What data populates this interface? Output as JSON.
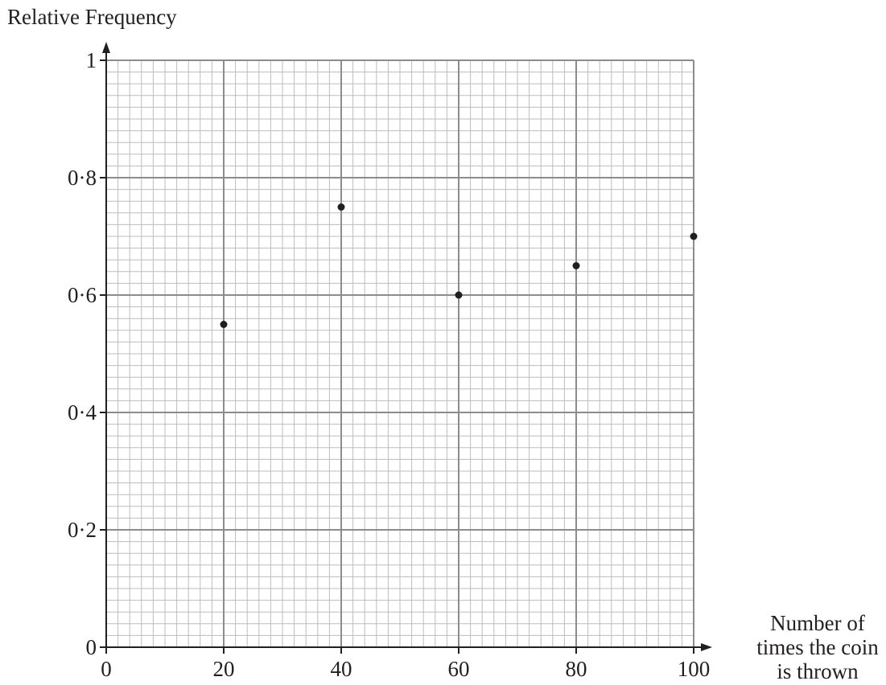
{
  "chart_data": {
    "type": "scatter",
    "ylabel": "Relative Frequency",
    "xlabel_lines": [
      "Number of",
      "times the coin",
      "is thrown"
    ],
    "xlim": [
      0,
      100
    ],
    "ylim": [
      0,
      1
    ],
    "x_ticks": [
      "0",
      "20",
      "40",
      "60",
      "80",
      "100"
    ],
    "y_ticks": [
      "0",
      "0·2",
      "0·4",
      "0·6",
      "0·8",
      "1"
    ],
    "grid": true,
    "points": [
      {
        "x": 20,
        "y": 0.55
      },
      {
        "x": 40,
        "y": 0.75
      },
      {
        "x": 60,
        "y": 0.6
      },
      {
        "x": 80,
        "y": 0.65
      },
      {
        "x": 100,
        "y": 0.7
      }
    ],
    "colors": {
      "text": "#231f20",
      "grid_major": "#8c8c8c",
      "grid_minor": "#bdbdbd",
      "axis": "#231f20",
      "point": "#231f20"
    }
  }
}
